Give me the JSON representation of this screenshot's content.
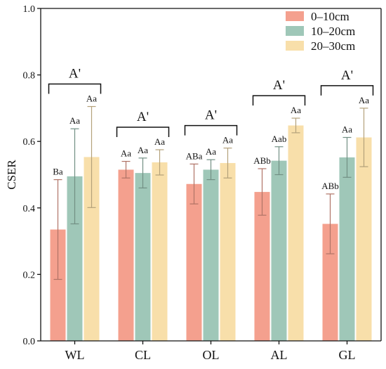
{
  "chart_data": {
    "type": "bar",
    "ylabel": "CSER",
    "ylim": [
      0,
      1.0
    ],
    "yticks": [
      "0.0",
      "0.2",
      "0.4",
      "0.6",
      "0.8",
      "1.0"
    ],
    "categories": [
      "WL",
      "CL",
      "OL",
      "AL",
      "GL"
    ],
    "series": [
      {
        "name": "0–10cm",
        "color": "#f4a08e",
        "values": [
          0.335,
          0.515,
          0.472,
          0.448,
          0.352
        ],
        "err": [
          0.15,
          0.025,
          0.06,
          0.07,
          0.09
        ],
        "letters": [
          "Ba",
          "Aa",
          "ABa",
          "ABb",
          "ABb"
        ]
      },
      {
        "name": "10–20cm",
        "color": "#9fc7b8",
        "values": [
          0.495,
          0.505,
          0.515,
          0.542,
          0.552
        ],
        "err": [
          0.143,
          0.045,
          0.03,
          0.042,
          0.06
        ],
        "letters": [
          "Aa",
          "Aa",
          "Aa",
          "Aab",
          "Aa"
        ]
      },
      {
        "name": "20–30cm",
        "color": "#f8dfaa",
        "values": [
          0.553,
          0.537,
          0.535,
          0.648,
          0.612
        ],
        "err": [
          0.152,
          0.038,
          0.045,
          0.022,
          0.088
        ],
        "letters": [
          "Aa",
          "Aa",
          "Aa",
          "Aa",
          "Aa"
        ]
      }
    ],
    "group_letters": [
      "A'",
      "A'",
      "A'",
      "A'",
      "A'"
    ],
    "legend": {
      "position": "top-right"
    },
    "grid": false
  }
}
